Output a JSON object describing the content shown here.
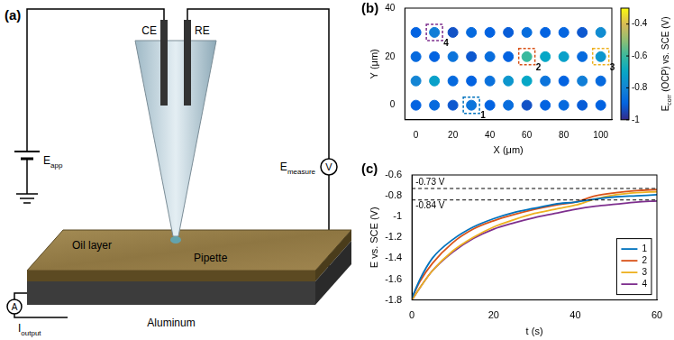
{
  "diagram": {
    "panel_label": "(a)",
    "counter_electrode": "CE",
    "reference_electrode": "RE",
    "applied_potential": {
      "main": "E",
      "sub": "app"
    },
    "measured_potential": {
      "main": "E",
      "sub": "measure"
    },
    "output_current": {
      "main": "I",
      "sub": "output"
    },
    "oil": "Oil layer",
    "pipette": "Pipette",
    "substrate": "Aluminum",
    "voltmeter": "V",
    "ammeter": "A"
  },
  "chart_data": [
    {
      "panel_label": "(b)",
      "type": "scatter",
      "marker": "circle",
      "grid": false,
      "x_label": "X (μm)",
      "y_label": "Y (μm)",
      "x": [
        0,
        10,
        20,
        30,
        40,
        50,
        60,
        70,
        80,
        90,
        100,
        0,
        10,
        20,
        30,
        40,
        50,
        60,
        70,
        80,
        90,
        100,
        0,
        10,
        20,
        30,
        40,
        50,
        60,
        70,
        80,
        90,
        100,
        0,
        10,
        20,
        30,
        40,
        50,
        60,
        70,
        80,
        90,
        100
      ],
      "y": [
        0,
        0,
        0,
        0,
        0,
        0,
        0,
        0,
        0,
        0,
        0,
        10,
        10,
        10,
        10,
        10,
        10,
        10,
        10,
        10,
        10,
        10,
        20,
        20,
        20,
        20,
        20,
        20,
        20,
        20,
        20,
        20,
        20,
        30,
        30,
        30,
        30,
        30,
        30,
        30,
        30,
        30,
        30,
        30
      ],
      "values": [
        -0.9,
        -0.88,
        -0.92,
        -0.85,
        -0.9,
        -0.87,
        -0.93,
        -0.9,
        -0.88,
        -0.91,
        -0.9,
        -0.8,
        -0.72,
        -0.88,
        -0.9,
        -0.86,
        -0.75,
        -0.7,
        -0.85,
        -0.9,
        -0.82,
        -0.88,
        -0.88,
        -0.9,
        -0.85,
        -0.92,
        -0.87,
        -0.9,
        -0.6,
        -0.7,
        -0.72,
        -0.88,
        -0.75,
        -0.9,
        -0.82,
        -0.93,
        -0.88,
        -0.9,
        -0.91,
        -0.87,
        -0.9,
        -0.89,
        -0.92,
        -0.78
      ],
      "xlim": [
        -6,
        106
      ],
      "xticks": [
        0,
        20,
        40,
        60,
        80,
        100
      ],
      "ylim": [
        -6,
        40
      ],
      "yticks": [
        0,
        20,
        40
      ],
      "colorbar": {
        "label": {
          "main": "E",
          "sub": "corr",
          "rest": " (OCP) vs. SCE (V)"
        },
        "range": [
          -1,
          -0.3
        ],
        "ticks": [
          -1,
          -0.8,
          -0.6,
          -0.4
        ]
      },
      "annotations": [
        {
          "label": "1",
          "x": 30,
          "y": 0,
          "color": "#0072bd"
        },
        {
          "label": "2",
          "x": 60,
          "y": 20,
          "color": "#d95319"
        },
        {
          "label": "3",
          "x": 100,
          "y": 20,
          "color": "#edb120"
        },
        {
          "label": "4",
          "x": 10,
          "y": 30,
          "color": "#7e2f8e"
        }
      ]
    },
    {
      "panel_label": "(c)",
      "type": "line",
      "marker": "none",
      "line_style": "solid",
      "grid": false,
      "legend": "lower right",
      "x_label": "t (s)",
      "y_label": "E vs. SCE (V)",
      "x": [
        0,
        2,
        5,
        10,
        15,
        20,
        25,
        30,
        35,
        40,
        45,
        50,
        55,
        60
      ],
      "series": [
        {
          "name": "1",
          "color": "#0072bd",
          "values": [
            -1.78,
            -1.6,
            -1.4,
            -1.22,
            -1.1,
            -1.02,
            -0.96,
            -0.92,
            -0.88,
            -0.86,
            -0.83,
            -0.81,
            -0.8,
            -0.79
          ]
        },
        {
          "name": "2",
          "color": "#d95319",
          "values": [
            -1.78,
            -1.62,
            -1.45,
            -1.25,
            -1.12,
            -1.04,
            -0.98,
            -0.93,
            -0.89,
            -0.86,
            -0.8,
            -0.77,
            -0.75,
            -0.74
          ]
        },
        {
          "name": "3",
          "color": "#edb120",
          "values": [
            -1.8,
            -1.68,
            -1.52,
            -1.33,
            -1.2,
            -1.1,
            -1.03,
            -0.97,
            -0.93,
            -0.89,
            -0.83,
            -0.79,
            -0.77,
            -0.76
          ]
        },
        {
          "name": "4",
          "color": "#7e2f8e",
          "values": [
            -1.8,
            -1.68,
            -1.52,
            -1.34,
            -1.21,
            -1.12,
            -1.06,
            -1.01,
            -0.97,
            -0.93,
            -0.9,
            -0.88,
            -0.86,
            -0.85
          ]
        }
      ],
      "xlim": [
        0,
        60
      ],
      "xticks": [
        0,
        20,
        40,
        60
      ],
      "ylim": [
        -1.8,
        -0.6
      ],
      "yticks": [
        -1.8,
        -1.6,
        -1.4,
        -1.2,
        -1,
        -0.8,
        -0.6
      ],
      "annotations": [
        {
          "type": "hline",
          "value": -0.73,
          "label": "-0.73 V"
        },
        {
          "type": "hline",
          "value": -0.84,
          "label": "-0.84 V"
        }
      ]
    }
  ]
}
